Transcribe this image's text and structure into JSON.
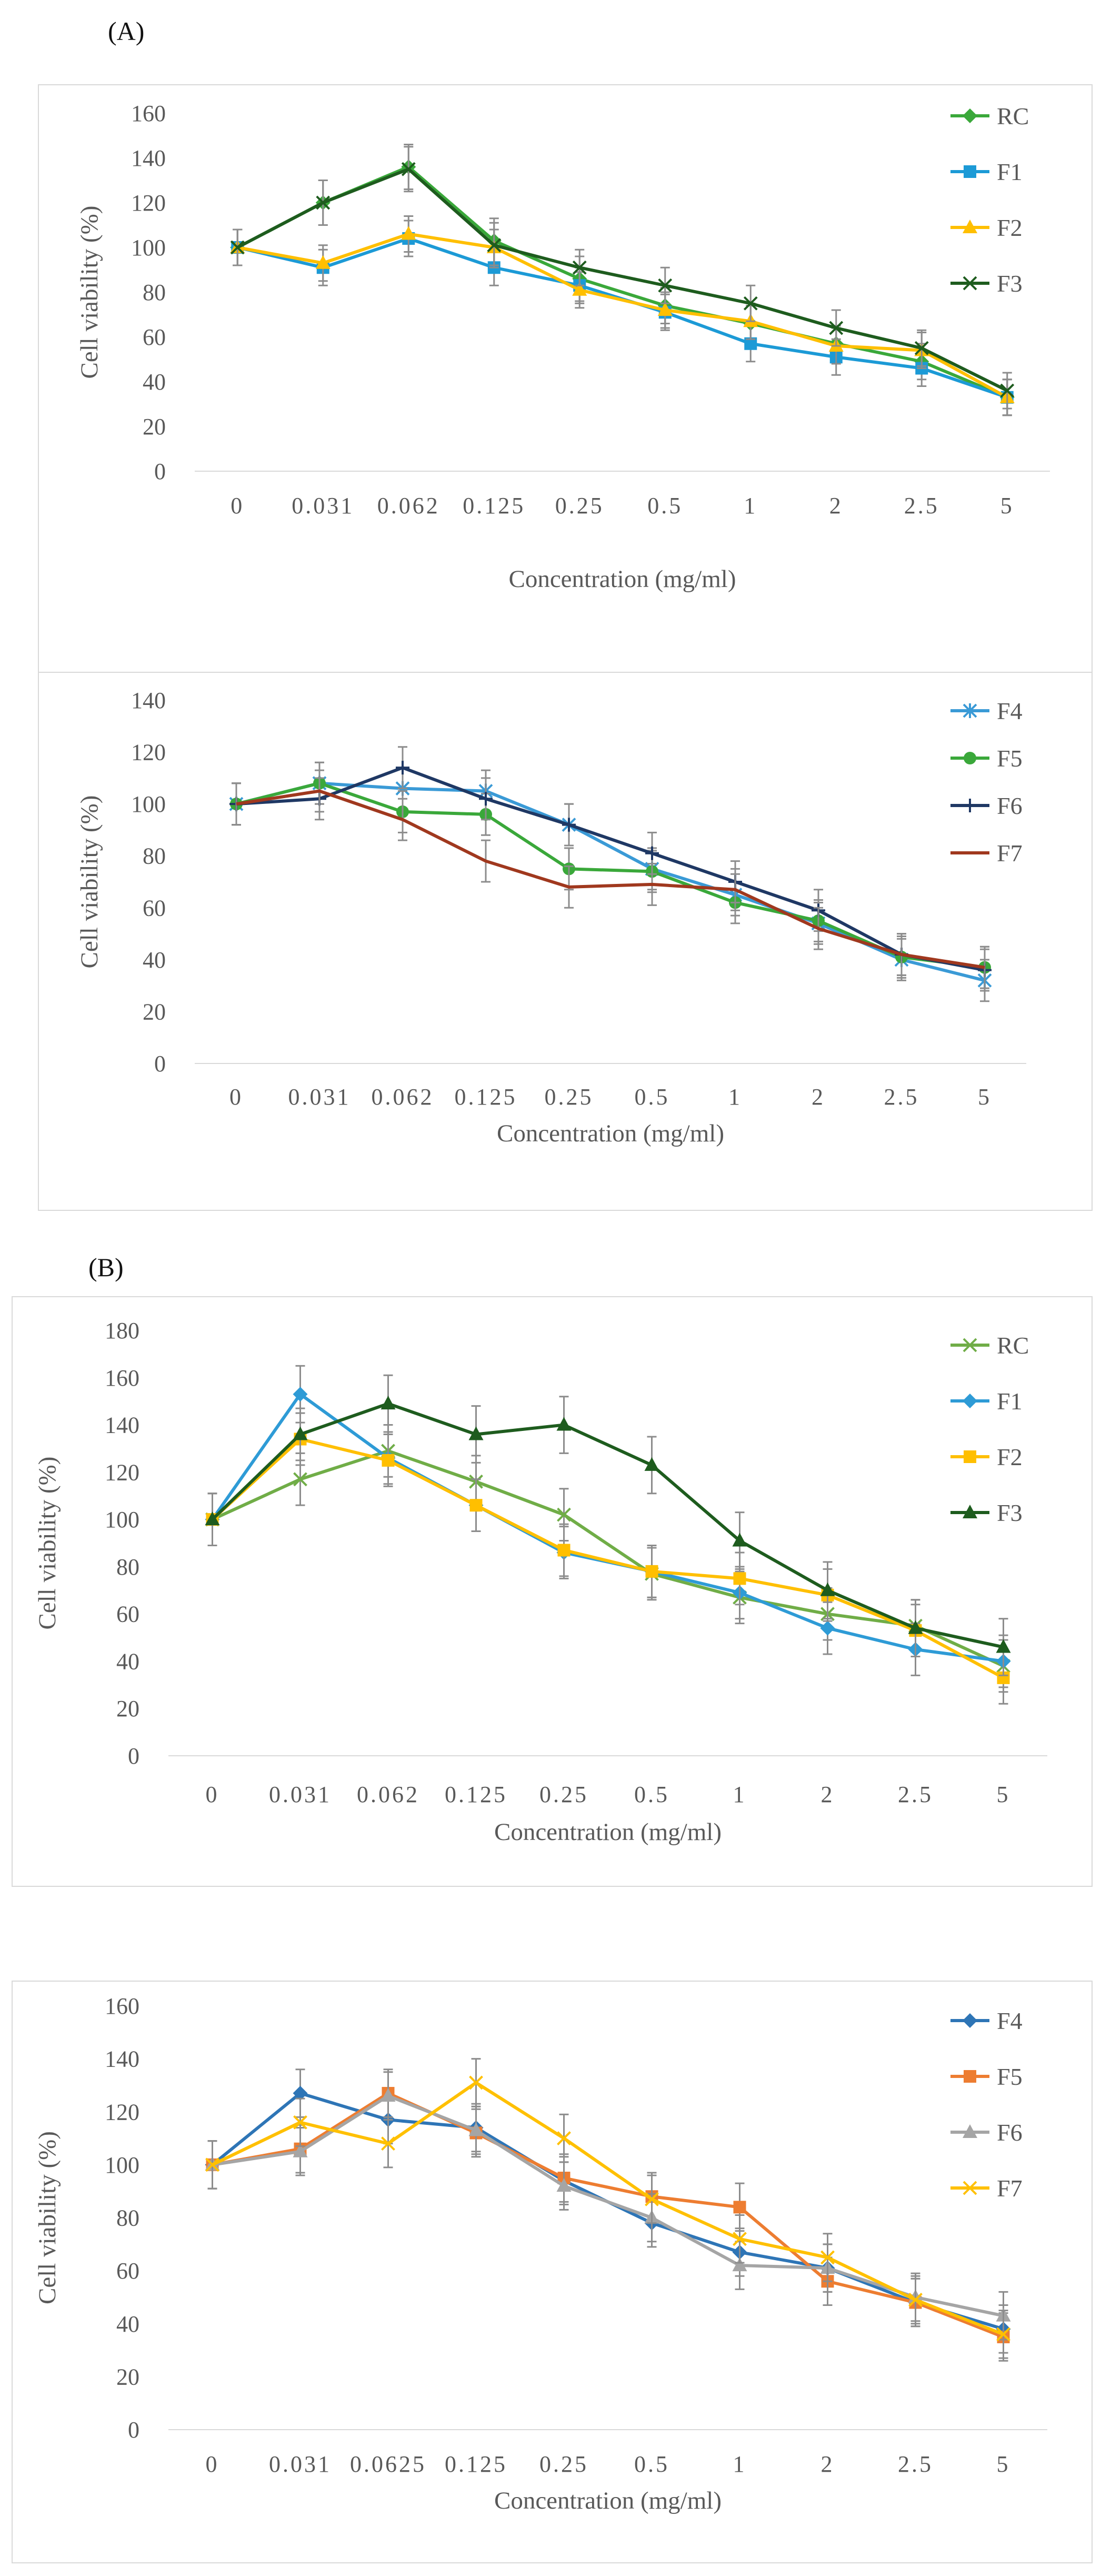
{
  "panel_labels": {
    "a": "(A)",
    "b": "(B)"
  },
  "chart_data": [
    {
      "type": "line",
      "panel": "A-top",
      "ylabel": "Cell viability (%)",
      "xlabel": "Concentration (mg/ml)",
      "categories": [
        "0",
        "0.031",
        "0.062",
        "0.125",
        "0.25",
        "0.5",
        "1",
        "2",
        "2.5",
        "5"
      ],
      "ylim": [
        0,
        160
      ],
      "yticks": [
        0,
        20,
        40,
        60,
        80,
        100,
        120,
        140,
        160
      ],
      "legend_position": "top-right",
      "series": [
        {
          "name": "RC",
          "color": "#3aa83a",
          "marker": "diamond",
          "values": [
            100,
            120,
            136,
            103,
            86,
            74,
            66,
            57,
            49,
            33
          ],
          "errors": [
            8,
            10,
            10,
            10,
            10,
            8,
            8,
            8,
            8,
            8
          ]
        },
        {
          "name": "F1",
          "color": "#1c9ad6",
          "marker": "square",
          "values": [
            100,
            91,
            104,
            91,
            83,
            71,
            57,
            51,
            46,
            33
          ],
          "errors": [
            8,
            8,
            8,
            8,
            8,
            8,
            8,
            8,
            8,
            8
          ]
        },
        {
          "name": "F2",
          "color": "#ffbf00",
          "marker": "triangle",
          "values": [
            100,
            93,
            106,
            100,
            81,
            72,
            67,
            56,
            54,
            33
          ],
          "errors": [
            8,
            8,
            8,
            8,
            8,
            8,
            8,
            8,
            8,
            8
          ]
        },
        {
          "name": "F3",
          "color": "#1e5c1e",
          "marker": "x",
          "values": [
            100,
            120,
            135,
            101,
            91,
            83,
            75,
            64,
            55,
            36
          ],
          "errors": [
            8,
            10,
            10,
            10,
            8,
            8,
            8,
            8,
            8,
            8
          ]
        }
      ]
    },
    {
      "type": "line",
      "panel": "A-bottom",
      "ylabel": "Cell viability (%)",
      "xlabel": "Concentration (mg/ml)",
      "categories": [
        "0",
        "0.031",
        "0.062",
        "0.125",
        "0.25",
        "0.5",
        "1",
        "2",
        "2.5",
        "5"
      ],
      "ylim": [
        0,
        140
      ],
      "yticks": [
        0,
        20,
        40,
        60,
        80,
        100,
        120,
        140
      ],
      "legend_position": "top-right",
      "series": [
        {
          "name": "F4",
          "color": "#3a9ad6",
          "marker": "star",
          "values": [
            100,
            108,
            106,
            105,
            92,
            75,
            65,
            54,
            40,
            32
          ],
          "errors": [
            8,
            8,
            8,
            8,
            8,
            8,
            8,
            8,
            8,
            8
          ]
        },
        {
          "name": "F5",
          "color": "#3aa83a",
          "marker": "circle",
          "values": [
            100,
            108,
            97,
            96,
            75,
            74,
            62,
            55,
            41,
            37
          ],
          "errors": [
            8,
            8,
            8,
            8,
            8,
            8,
            8,
            8,
            8,
            8
          ]
        },
        {
          "name": "F6",
          "color": "#1f3864",
          "marker": "plus",
          "values": [
            100,
            102,
            114,
            102,
            92,
            81,
            70,
            59,
            42,
            36
          ],
          "errors": [
            8,
            8,
            8,
            8,
            8,
            8,
            8,
            8,
            8,
            8
          ]
        },
        {
          "name": "F7",
          "color": "#a0381e",
          "marker": "none",
          "values": [
            100,
            105,
            94,
            78,
            68,
            69,
            67,
            52,
            42,
            37
          ],
          "errors": [
            8,
            8,
            8,
            8,
            8,
            8,
            8,
            8,
            8,
            8
          ]
        }
      ]
    },
    {
      "type": "line",
      "panel": "B-top",
      "ylabel": "Cell viability (%)",
      "xlabel": "Concentration (mg/ml)",
      "categories": [
        "0",
        "0.031",
        "0.062",
        "0.125",
        "0.25",
        "0.5",
        "1",
        "2",
        "2.5",
        "5"
      ],
      "ylim": [
        0,
        180
      ],
      "yticks": [
        0,
        20,
        40,
        60,
        80,
        100,
        120,
        140,
        160,
        180
      ],
      "legend_position": "top-right",
      "series": [
        {
          "name": "RC",
          "color": "#70ad47",
          "marker": "x",
          "values": [
            100,
            117,
            129,
            116,
            102,
            77,
            67,
            60,
            55,
            38
          ],
          "errors": [
            11,
            11,
            11,
            11,
            11,
            11,
            11,
            11,
            11,
            11
          ]
        },
        {
          "name": "F1",
          "color": "#2e9bd6",
          "marker": "diamond",
          "values": [
            100,
            153,
            126,
            106,
            86,
            78,
            69,
            54,
            45,
            40
          ],
          "errors": [
            11,
            12,
            11,
            11,
            11,
            11,
            11,
            11,
            11,
            11
          ]
        },
        {
          "name": "F2",
          "color": "#ffbf00",
          "marker": "square",
          "values": [
            100,
            134,
            125,
            106,
            87,
            78,
            75,
            68,
            53,
            33
          ],
          "errors": [
            11,
            11,
            11,
            11,
            11,
            11,
            11,
            11,
            11,
            11
          ]
        },
        {
          "name": "F3",
          "color": "#1e5c1e",
          "marker": "triangle",
          "values": [
            100,
            136,
            149,
            136,
            140,
            123,
            91,
            70,
            54,
            46
          ],
          "errors": [
            11,
            11,
            12,
            12,
            12,
            12,
            12,
            12,
            12,
            12
          ]
        }
      ]
    },
    {
      "type": "line",
      "panel": "B-bottom",
      "ylabel": "Cell viability (%)",
      "xlabel": "Concentration (mg/ml)",
      "categories": [
        "0",
        "0.031",
        "0.0625",
        "0.125",
        "0.25",
        "0.5",
        "1",
        "2",
        "2.5",
        "5"
      ],
      "ylim": [
        0,
        160
      ],
      "yticks": [
        0,
        20,
        40,
        60,
        80,
        100,
        120,
        140,
        160
      ],
      "legend_position": "top-right",
      "series": [
        {
          "name": "F4",
          "color": "#2e75b6",
          "marker": "diamond",
          "values": [
            100,
            127,
            117,
            114,
            94,
            78,
            67,
            61,
            48,
            38
          ],
          "errors": [
            9,
            9,
            9,
            9,
            9,
            9,
            9,
            9,
            9,
            9
          ]
        },
        {
          "name": "F5",
          "color": "#ed7d31",
          "marker": "square",
          "values": [
            100,
            106,
            127,
            112,
            95,
            88,
            84,
            56,
            48,
            35
          ],
          "errors": [
            9,
            9,
            9,
            9,
            9,
            9,
            9,
            9,
            9,
            9
          ]
        },
        {
          "name": "F6",
          "color": "#a5a5a5",
          "marker": "triangle",
          "values": [
            100,
            105,
            126,
            113,
            92,
            80,
            62,
            61,
            50,
            43
          ],
          "errors": [
            9,
            9,
            9,
            9,
            9,
            9,
            9,
            9,
            9,
            9
          ]
        },
        {
          "name": "F7",
          "color": "#ffc000",
          "marker": "x",
          "values": [
            100,
            116,
            108,
            131,
            110,
            87,
            72,
            65,
            49,
            36
          ],
          "errors": [
            9,
            9,
            9,
            9,
            9,
            9,
            9,
            9,
            9,
            9
          ]
        }
      ]
    }
  ]
}
